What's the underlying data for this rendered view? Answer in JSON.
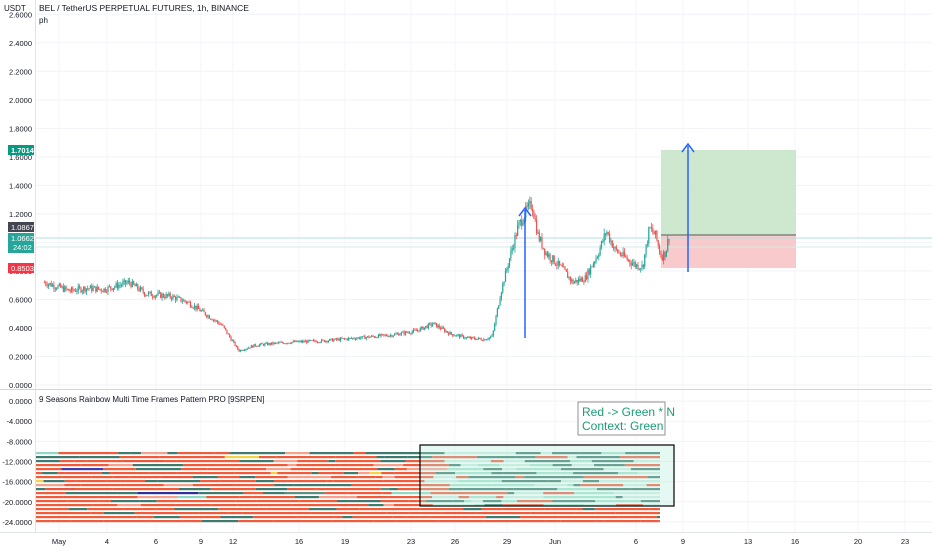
{
  "header": {
    "title": "BEL / TetherUS PERPETUAL FUTURES, 1h, BINANCE",
    "note": "ph",
    "currency": "USDT"
  },
  "price_badges": {
    "target": "1.7014",
    "last": "1.0867",
    "current": "1.0662",
    "countdown": "24:02",
    "stop": "0.8503"
  },
  "indicator": {
    "title": "9 Seasons Rainbow Multi Time Frames Pattern PRO [9SRPEN]",
    "label_line1": "Red -> Green * N",
    "label_line2": "Context: Green"
  },
  "colors": {
    "up": "#26a69a",
    "down": "#ef5350",
    "arrow": "#2962ff",
    "target_zone": "#c8e6c9",
    "stop_zone": "#f8c7c8",
    "label_text": "#1b9e77"
  },
  "chart_data": [
    {
      "type": "candlestick",
      "title": "BEL / TetherUS PERPETUAL FUTURES, 1h, BINANCE",
      "ylabel": "USDT",
      "ylim": [
        0,
        2.7
      ],
      "y_ticks": [
        "2.6000",
        "2.4000",
        "2.2000",
        "2.0000",
        "1.8000",
        "1.6000",
        "1.4000",
        "1.2000",
        "1.0000",
        "0.8000",
        "0.6000",
        "0.4000",
        "0.2000",
        "0.0000"
      ],
      "x_ticks": [
        "May",
        "4",
        "6",
        "9",
        "12",
        "16",
        "19",
        "23",
        "26",
        "29",
        "Jun",
        "6",
        "9",
        "13",
        "16",
        "20",
        "23"
      ],
      "price_path": [
        {
          "x": 1,
          "y": 0.72
        },
        {
          "x": 4,
          "y": 0.66
        },
        {
          "x": 6,
          "y": 0.68
        },
        {
          "x": 8,
          "y": 0.67
        },
        {
          "x": 11,
          "y": 0.72
        },
        {
          "x": 13,
          "y": 0.64
        },
        {
          "x": 16,
          "y": 0.62
        },
        {
          "x": 18,
          "y": 0.58
        },
        {
          "x": 20,
          "y": 0.5
        },
        {
          "x": 22,
          "y": 0.42
        },
        {
          "x": 23,
          "y": 0.33
        },
        {
          "x": 24,
          "y": 0.24
        },
        {
          "x": 26,
          "y": 0.28
        },
        {
          "x": 30,
          "y": 0.3
        },
        {
          "x": 34,
          "y": 0.31
        },
        {
          "x": 38,
          "y": 0.33
        },
        {
          "x": 42,
          "y": 0.35
        },
        {
          "x": 45,
          "y": 0.38
        },
        {
          "x": 47,
          "y": 0.43
        },
        {
          "x": 49,
          "y": 0.36
        },
        {
          "x": 51,
          "y": 0.33
        },
        {
          "x": 53,
          "y": 0.32
        },
        {
          "x": 54,
          "y": 0.34
        },
        {
          "x": 55,
          "y": 0.65
        },
        {
          "x": 56,
          "y": 0.88
        },
        {
          "x": 57,
          "y": 1.1
        },
        {
          "x": 58,
          "y": 1.22
        },
        {
          "x": 58.7,
          "y": 1.27
        },
        {
          "x": 59.4,
          "y": 1.05
        },
        {
          "x": 60.3,
          "y": 0.93
        },
        {
          "x": 61.5,
          "y": 0.86
        },
        {
          "x": 62.5,
          "y": 0.8
        },
        {
          "x": 63.5,
          "y": 0.72
        },
        {
          "x": 65,
          "y": 0.75
        },
        {
          "x": 66.5,
          "y": 0.92
        },
        {
          "x": 67.5,
          "y": 1.08
        },
        {
          "x": 68.5,
          "y": 0.95
        },
        {
          "x": 70,
          "y": 0.88
        },
        {
          "x": 71,
          "y": 0.84
        },
        {
          "x": 71.8,
          "y": 0.83
        },
        {
          "x": 72.6,
          "y": 1.1
        },
        {
          "x": 73.3,
          "y": 1.05
        },
        {
          "x": 74,
          "y": 0.9
        },
        {
          "x": 74.5,
          "y": 0.93
        },
        {
          "x": 75,
          "y": 1.07
        }
      ],
      "trade_setup": {
        "entry": 1.0867,
        "target": 1.7014,
        "stop": 0.8503
      }
    },
    {
      "type": "heatmap",
      "title": "9 Seasons Rainbow Multi Time Frames Pattern PRO [9SRPEN]",
      "ylim": [
        -25,
        1
      ],
      "y_ticks": [
        "0.0000",
        "-4.0000",
        "-8.0000",
        "-12.0000",
        "-16.0000",
        "-20.0000",
        "-24.0000"
      ],
      "rows": 18,
      "annotation": [
        "Red -> Green * N",
        "Context: Green"
      ]
    }
  ]
}
